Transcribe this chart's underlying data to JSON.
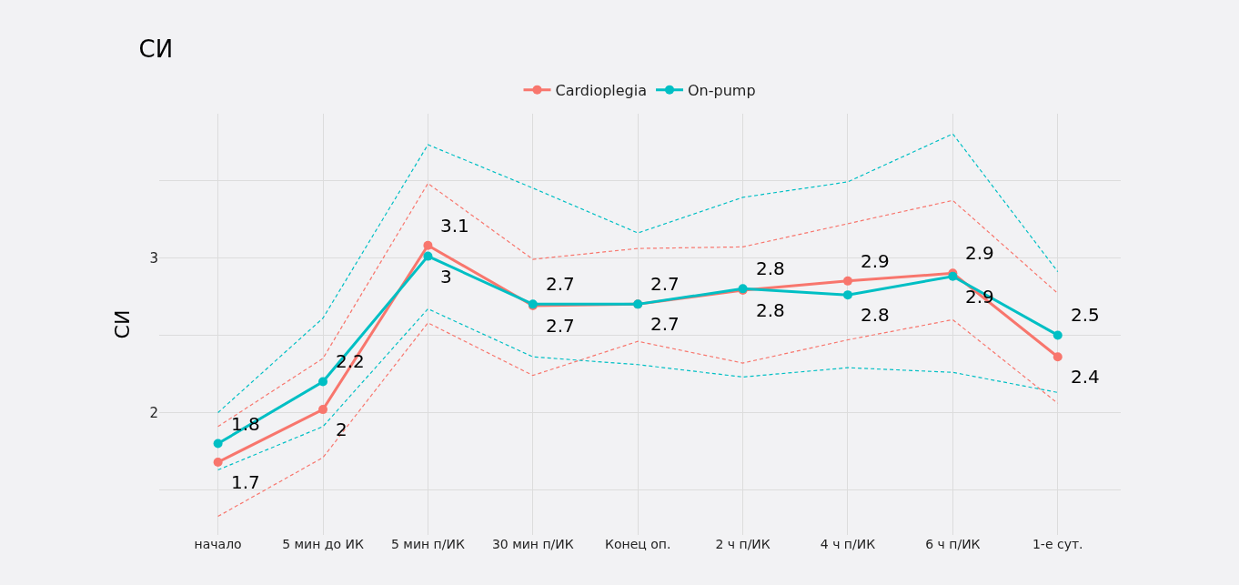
{
  "chart_data": {
    "type": "line",
    "title": "СИ",
    "ylabel": "СИ",
    "categories": [
      "начало",
      "5 мин до ИК",
      "5 мин п/ИК",
      "30 мин п/ИК",
      "Конец оп.",
      "2 ч п/ИК",
      "4 ч п/ИК",
      "6 ч п/ИК",
      "1-е сут."
    ],
    "series": [
      {
        "color": "#f8766d",
        "line_style": "dashed",
        "marker": "none",
        "values": [
          1.91,
          2.35,
          3.48,
          2.99,
          3.06,
          3.07,
          3.22,
          3.37,
          2.77
        ]
      },
      {
        "color": "#f8766d",
        "line_style": "dashed",
        "marker": "none",
        "values": [
          1.33,
          1.71,
          2.58,
          2.24,
          2.46,
          2.32,
          2.47,
          2.6,
          2.06
        ]
      },
      {
        "color": "#00bfc4",
        "line_style": "dashed",
        "marker": "none",
        "values": [
          2.0,
          2.61,
          3.73,
          3.45,
          3.16,
          3.39,
          3.49,
          3.8,
          2.91
        ]
      },
      {
        "color": "#00bfc4",
        "line_style": "dashed",
        "marker": "none",
        "values": [
          1.63,
          1.91,
          2.67,
          2.36,
          2.31,
          2.23,
          2.29,
          2.26,
          2.13
        ]
      },
      {
        "name": "Cardioplegia",
        "color": "#f8766d",
        "values": [
          1.68,
          2.02,
          3.08,
          2.69,
          2.7,
          2.79,
          2.85,
          2.9,
          2.36
        ],
        "value_labels": [
          "1.7",
          "2",
          "3.1",
          "2.7",
          "2.7",
          "2.8",
          "2.9",
          "2.9",
          "2.4"
        ]
      },
      {
        "name": "On-pump",
        "color": "#00bfc4",
        "values": [
          1.8,
          2.2,
          3.01,
          2.7,
          2.7,
          2.8,
          2.76,
          2.88,
          2.5
        ],
        "value_labels": [
          "1.8",
          "2.2",
          "3",
          "2.7",
          "2.7",
          "2.8",
          "2.8",
          "2.9",
          "2.5"
        ]
      }
    ],
    "ylim": [
      1.21,
      3.93
    ],
    "yticks": [
      {
        "value": 1.5,
        "label": null
      },
      2,
      {
        "value": 2.5,
        "label": null
      },
      3,
      {
        "value": 3.5,
        "label": null
      }
    ],
    "grid": true,
    "legend": "top",
    "marker": "circle",
    "line_style": "solid"
  }
}
